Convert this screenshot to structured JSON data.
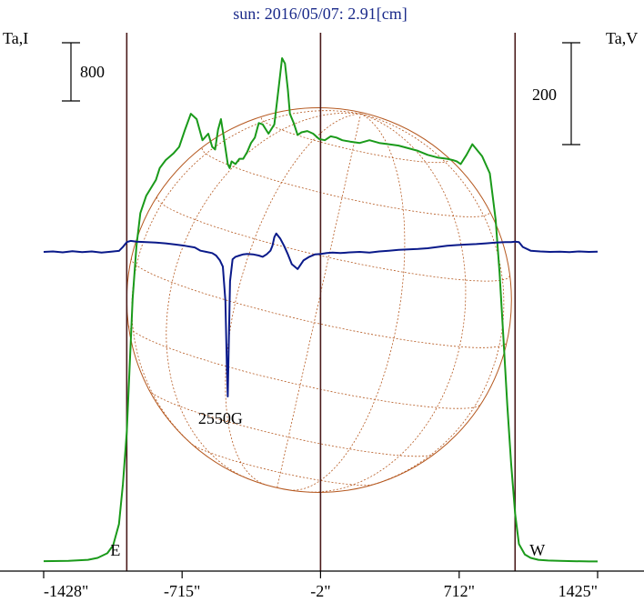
{
  "chart_data": {
    "type": "line",
    "title": "sun: 2016/05/07: 2.91[cm]",
    "left_axis_label": "Ta,I",
    "right_axis_label": "Ta,V",
    "left_scale_bar_label": "800",
    "right_scale_bar_label": "200",
    "x_unit": "arcsec",
    "x_ticks": [
      -1428,
      -715,
      -2,
      712,
      1425
    ],
    "x_tick_labels": [
      "-1428\"",
      "-715\"",
      "-2\"",
      "712\"",
      "1425\""
    ],
    "xlim": [
      -1428,
      1425
    ],
    "limb_markers": [
      {
        "label": "E",
        "x": -1000
      },
      {
        "label": "W",
        "x": 1000
      }
    ],
    "center_marker_x": -2,
    "annotations": [
      {
        "text": "2550G",
        "x": -480,
        "series": "V"
      }
    ],
    "colors": {
      "intensity": "#1a9a1a",
      "polarization": "#0a1a8a",
      "disk": "#b5581f",
      "markers": "#4a1a1a",
      "title": "#1a2a8a"
    },
    "series": [
      {
        "name": "I",
        "color": "#1a9a1a",
        "x": [
          -1428,
          -1300,
          -1200,
          -1150,
          -1100,
          -1070,
          -1040,
          -1020,
          -1000,
          -985,
          -970,
          -950,
          -930,
          -900,
          -850,
          -830,
          -800,
          -760,
          -730,
          -700,
          -670,
          -640,
          -610,
          -580,
          -560,
          -545,
          -530,
          -515,
          -500,
          -480,
          -470,
          -460,
          -440,
          -420,
          -400,
          -380,
          -360,
          -340,
          -320,
          -300,
          -270,
          -240,
          -215,
          -200,
          -185,
          -170,
          -160,
          -140,
          -120,
          -100,
          -70,
          -40,
          -10,
          20,
          50,
          80,
          110,
          150,
          200,
          250,
          300,
          350,
          400,
          450,
          500,
          550,
          600,
          650,
          680,
          700,
          720,
          750,
          780,
          830,
          870,
          900,
          920,
          940,
          960,
          980,
          1000,
          1020,
          1050,
          1080,
          1120,
          1170,
          1230,
          1300,
          1380,
          1425
        ],
        "values": [
          20,
          22,
          30,
          45,
          80,
          140,
          300,
          600,
          1000,
          1500,
          2000,
          2400,
          2650,
          2780,
          2900,
          2990,
          3050,
          3100,
          3150,
          3280,
          3400,
          3360,
          3200,
          3250,
          3150,
          3130,
          3280,
          3360,
          3220,
          3020,
          2990,
          3040,
          3020,
          3060,
          3060,
          3110,
          3180,
          3220,
          3330,
          3320,
          3250,
          3320,
          3630,
          3820,
          3780,
          3580,
          3400,
          3330,
          3240,
          3260,
          3270,
          3250,
          3210,
          3200,
          3230,
          3220,
          3200,
          3190,
          3180,
          3200,
          3180,
          3170,
          3160,
          3140,
          3120,
          3090,
          3070,
          3060,
          3050,
          3040,
          3020,
          3090,
          3170,
          3080,
          2950,
          2600,
          2200,
          1700,
          1200,
          750,
          380,
          150,
          70,
          45,
          30,
          25,
          22,
          20,
          18,
          18
        ]
      },
      {
        "name": "V",
        "color": "#0a1a8a",
        "x": [
          -1428,
          -1380,
          -1330,
          -1280,
          -1230,
          -1180,
          -1130,
          -1080,
          -1040,
          -1020,
          -1000,
          -980,
          -950,
          -900,
          -850,
          -800,
          -750,
          -700,
          -650,
          -620,
          -590,
          -560,
          -540,
          -520,
          -505,
          -492,
          -485,
          -480,
          -475,
          -468,
          -455,
          -440,
          -420,
          -400,
          -380,
          -350,
          -320,
          -300,
          -280,
          -260,
          -250,
          -240,
          -230,
          -210,
          -190,
          -170,
          -150,
          -120,
          -90,
          -60,
          -30,
          0,
          30,
          60,
          100,
          150,
          200,
          250,
          300,
          350,
          400,
          450,
          500,
          550,
          600,
          650,
          700,
          750,
          800,
          850,
          900,
          950,
          980,
          1000,
          1020,
          1040,
          1080,
          1130,
          1180,
          1230,
          1280,
          1330,
          1380,
          1425
        ],
        "values": [
          0,
          2,
          -2,
          3,
          -1,
          2,
          -3,
          1,
          4,
          20,
          40,
          45,
          42,
          40,
          38,
          35,
          30,
          25,
          18,
          5,
          0,
          -5,
          -15,
          -35,
          -60,
          -200,
          -450,
          -590,
          -400,
          -120,
          -30,
          -20,
          -15,
          -10,
          -8,
          -10,
          -15,
          -20,
          -10,
          5,
          25,
          60,
          75,
          55,
          25,
          -10,
          -50,
          -70,
          -35,
          -20,
          -10,
          -8,
          -5,
          -3,
          -5,
          -2,
          0,
          -3,
          2,
          5,
          8,
          10,
          12,
          15,
          20,
          25,
          28,
          30,
          32,
          35,
          38,
          40,
          40,
          42,
          40,
          20,
          5,
          2,
          0,
          1,
          -1,
          2,
          0,
          1
        ]
      }
    ]
  }
}
